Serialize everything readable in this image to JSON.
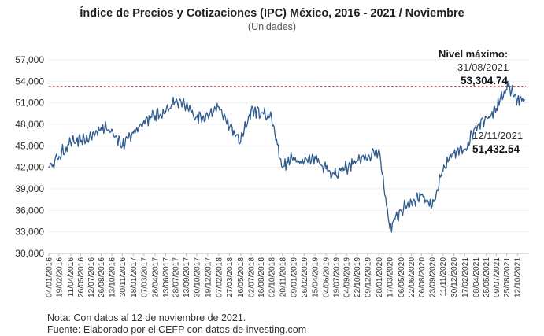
{
  "chart_data": {
    "type": "line",
    "title": "Índice de Precios y Cotizaciones (IPC) México, 2016 - 2021 / Noviembre",
    "subtitle": "(Unidades)",
    "ylim": [
      30000,
      57000
    ],
    "yticks": [
      "30,000",
      "33,000",
      "36,000",
      "39,000",
      "42,000",
      "45,000",
      "48,000",
      "51,000",
      "54,000",
      "57,000"
    ],
    "xtick_labels": [
      "04/01/2016",
      "19/02/2016",
      "11/04/2016",
      "26/05/2016",
      "12/07/2016",
      "26/08/2016",
      "13/10/2016",
      "30/11/2016",
      "18/01/2017",
      "07/03/2017",
      "26/04/2017",
      "13/06/2017",
      "28/07/2017",
      "13/09/2017",
      "30/10/2017",
      "19/12/2017",
      "07/02/2018",
      "27/03/2018",
      "16/05/2018",
      "02/07/2018",
      "16/08/2018",
      "02/10/2018",
      "20/11/2018",
      "09/01/2019",
      "26/02/2019",
      "15/04/2019",
      "04/06/2019",
      "19/07/2019",
      "04/09/2019",
      "22/10/2019",
      "09/12/2019",
      "28/01/2020",
      "17/03/2020",
      "06/05/2020",
      "22/06/2020",
      "06/08/2020",
      "23/09/2020",
      "11/11/2020",
      "30/12/2020",
      "17/02/2021",
      "08/04/2021",
      "25/05/2021",
      "09/07/2021",
      "25/08/2021",
      "12/10/2021"
    ],
    "series": [
      {
        "color": "#2e5a8c",
        "x": [
          "04/01/2016",
          "19/02/2016",
          "11/04/2016",
          "26/05/2016",
          "12/07/2016",
          "26/08/2016",
          "13/10/2016",
          "30/11/2016",
          "18/01/2017",
          "07/03/2017",
          "26/04/2017",
          "13/06/2017",
          "28/07/2017",
          "13/09/2017",
          "30/10/2017",
          "19/12/2017",
          "07/02/2018",
          "27/03/2018",
          "16/05/2018",
          "02/07/2018",
          "16/08/2018",
          "02/10/2018",
          "20/11/2018",
          "09/01/2019",
          "26/02/2019",
          "15/04/2019",
          "04/06/2019",
          "19/07/2019",
          "04/09/2019",
          "22/10/2019",
          "09/12/2019",
          "28/01/2020",
          "17/03/2020",
          "06/05/2020",
          "22/06/2020",
          "06/08/2020",
          "23/09/2020",
          "11/11/2020",
          "30/12/2020",
          "17/02/2021",
          "08/04/2021",
          "25/05/2021",
          "09/07/2021",
          "25/08/2021",
          "31/08/2021",
          "12/10/2021",
          "12/11/2021"
        ],
        "values": [
          42000,
          43500,
          45500,
          45600,
          46200,
          47500,
          47300,
          45000,
          46800,
          48500,
          49200,
          49800,
          51200,
          50500,
          49000,
          49300,
          50400,
          47600,
          45600,
          50000,
          49600,
          49000,
          42000,
          43400,
          42800,
          43500,
          41800,
          40900,
          42000,
          42900,
          43300,
          44500,
          33500,
          36000,
          37200,
          38200,
          36600,
          41500,
          44000,
          44500,
          47800,
          49000,
          50200,
          52800,
          53304.74,
          51500,
          51432.54
        ]
      }
    ],
    "reference_line": {
      "value": 53304.74,
      "style": "dashed",
      "color": "#d63a3a"
    },
    "annotations": {
      "max_label": "Nivel máximo:",
      "max_date": "31/08/2021",
      "max_value": "53,304.74",
      "last_date": "12/11/2021",
      "last_value": "51,432.54"
    },
    "notes": [
      "Nota: Con datos al 12 de noviembre de 2021.",
      "Fuente: Elaborado por el CEFP con datos de investing.com"
    ]
  }
}
